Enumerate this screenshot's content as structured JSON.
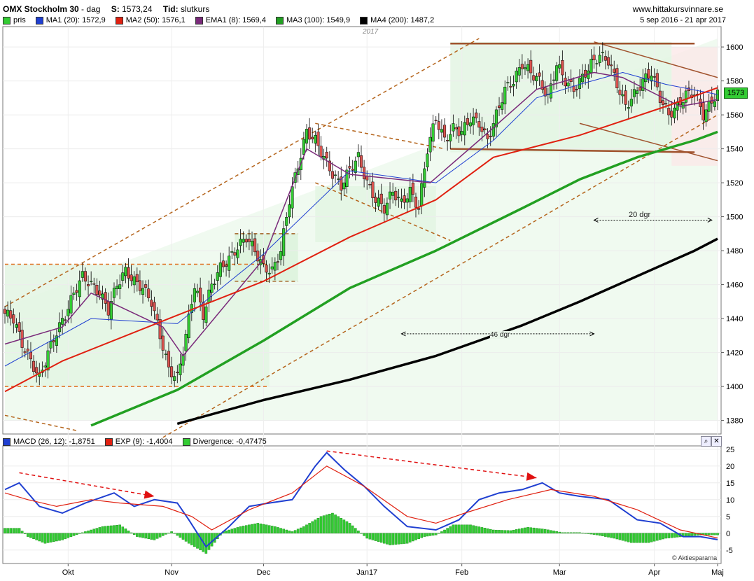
{
  "header": {
    "title": "OMX Stockholm 30",
    "period": "dag",
    "last_label": "S:",
    "last_value": "1573,24",
    "time_label": "Tid:",
    "time_value": "slutkurs",
    "site": "www.hittakursvinnare.se",
    "date_range": "5 sep 2016 - 21 apr 2017"
  },
  "legend_price": [
    {
      "label": "pris",
      "color": "#33cc33"
    },
    {
      "label": "MA1 (20): 1572,9",
      "color": "#1f3fd1"
    },
    {
      "label": "MA2 (50): 1576,1",
      "color": "#e02010"
    },
    {
      "label": "EMA1 (8): 1569,4",
      "color": "#7a2a7a"
    },
    {
      "label": "MA3 (100): 1549,9",
      "color": "#22a022"
    },
    {
      "label": "MA4 (200): 1487,2",
      "color": "#000000"
    }
  ],
  "legend_macd": [
    {
      "label": "MACD (26, 12): -1,8751",
      "color": "#1f3fd1"
    },
    {
      "label": "EXP (9): -1,4004",
      "color": "#e02010"
    },
    {
      "label": "Divergence: -0,47475",
      "color": "#33cc33"
    }
  ],
  "annotations": {
    "year_label": "2017",
    "dgr20": "20 dgr",
    "dgr46": "46 dgr",
    "watermark": "© Aktiespararna",
    "last_price_tag": "1573"
  },
  "chart_data": [
    {
      "type": "candlestick",
      "title": "OMX Stockholm 30",
      "x_labels": [
        "Okt",
        "Nov",
        "Dec",
        "Jan17",
        "Feb",
        "Mar",
        "Apr",
        "Maj"
      ],
      "y_ticks": [
        1380,
        1400,
        1420,
        1440,
        1460,
        1480,
        1500,
        1520,
        1540,
        1560,
        1580,
        1600
      ],
      "ylim": [
        1372,
        1612
      ],
      "close_anchors": [
        [
          0,
          1443
        ],
        [
          3,
          1440
        ],
        [
          6,
          1425
        ],
        [
          9,
          1415
        ],
        [
          12,
          1405
        ],
        [
          15,
          1420
        ],
        [
          18,
          1432
        ],
        [
          21,
          1442
        ],
        [
          24,
          1455
        ],
        [
          27,
          1465
        ],
        [
          30,
          1460
        ],
        [
          33,
          1455
        ],
        [
          36,
          1445
        ],
        [
          39,
          1460
        ],
        [
          42,
          1468
        ],
        [
          45,
          1462
        ],
        [
          48,
          1458
        ],
        [
          51,
          1450
        ],
        [
          54,
          1430
        ],
        [
          57,
          1410
        ],
        [
          60,
          1405
        ],
        [
          63,
          1430
        ],
        [
          66,
          1460
        ],
        [
          69,
          1442
        ],
        [
          72,
          1460
        ],
        [
          75,
          1470
        ],
        [
          78,
          1475
        ],
        [
          81,
          1482
        ],
        [
          84,
          1488
        ],
        [
          87,
          1480
        ],
        [
          90,
          1470
        ],
        [
          93,
          1468
        ],
        [
          96,
          1480
        ],
        [
          99,
          1510
        ],
        [
          102,
          1530
        ],
        [
          105,
          1550
        ],
        [
          108,
          1545
        ],
        [
          111,
          1535
        ],
        [
          114,
          1525
        ],
        [
          117,
          1518
        ],
        [
          120,
          1528
        ],
        [
          123,
          1535
        ],
        [
          126,
          1520
        ],
        [
          129,
          1510
        ],
        [
          132,
          1505
        ],
        [
          135,
          1515
        ],
        [
          138,
          1508
        ],
        [
          141,
          1515
        ],
        [
          144,
          1505
        ],
        [
          147,
          1540
        ],
        [
          150,
          1558
        ],
        [
          153,
          1545
        ],
        [
          156,
          1552
        ],
        [
          159,
          1550
        ],
        [
          162,
          1558
        ],
        [
          165,
          1555
        ],
        [
          168,
          1545
        ],
        [
          171,
          1560
        ],
        [
          174,
          1575
        ],
        [
          177,
          1580
        ],
        [
          180,
          1590
        ],
        [
          183,
          1585
        ],
        [
          186,
          1580
        ],
        [
          189,
          1570
        ],
        [
          192,
          1590
        ],
        [
          195,
          1580
        ],
        [
          198,
          1575
        ],
        [
          201,
          1582
        ],
        [
          204,
          1590
        ],
        [
          207,
          1595
        ],
        [
          210,
          1592
        ],
        [
          213,
          1578
        ],
        [
          216,
          1565
        ],
        [
          219,
          1572
        ],
        [
          222,
          1580
        ],
        [
          225,
          1585
        ],
        [
          228,
          1570
        ],
        [
          231,
          1560
        ],
        [
          234,
          1565
        ],
        [
          237,
          1572
        ],
        [
          240,
          1573
        ],
        [
          243,
          1560
        ],
        [
          246,
          1568
        ],
        [
          248,
          1573
        ]
      ],
      "series": [
        {
          "name": "MA1 (20)",
          "points": [
            [
              0,
              1412
            ],
            [
              30,
              1440
            ],
            [
              60,
              1437
            ],
            [
              90,
              1478
            ],
            [
              120,
              1527
            ],
            [
              150,
              1520
            ],
            [
              170,
              1545
            ],
            [
              185,
              1570
            ],
            [
              200,
              1578
            ],
            [
              215,
              1585
            ],
            [
              230,
              1578
            ],
            [
              248,
              1572
            ]
          ]
        },
        {
          "name": "EMA1 (8)",
          "points": [
            [
              0,
              1425
            ],
            [
              20,
              1435
            ],
            [
              30,
              1455
            ],
            [
              55,
              1435
            ],
            [
              62,
              1418
            ],
            [
              90,
              1475
            ],
            [
              105,
              1540
            ],
            [
              120,
              1525
            ],
            [
              148,
              1520
            ],
            [
              165,
              1545
            ],
            [
              185,
              1575
            ],
            [
              205,
              1585
            ],
            [
              215,
              1582
            ],
            [
              235,
              1565
            ],
            [
              248,
              1569
            ]
          ]
        },
        {
          "name": "MA2 (50)",
          "points": [
            [
              0,
              1397
            ],
            [
              20,
              1415
            ],
            [
              60,
              1442
            ],
            [
              90,
              1462
            ],
            [
              120,
              1488
            ],
            [
              150,
              1510
            ],
            [
              170,
              1535
            ],
            [
              200,
              1548
            ],
            [
              230,
              1565
            ],
            [
              248,
              1576
            ]
          ]
        },
        {
          "name": "MA3 (100)",
          "points": [
            [
              30,
              1377
            ],
            [
              60,
              1398
            ],
            [
              90,
              1427
            ],
            [
              120,
              1458
            ],
            [
              150,
              1480
            ],
            [
              180,
              1505
            ],
            [
              200,
              1522
            ],
            [
              220,
              1535
            ],
            [
              240,
              1545
            ],
            [
              248,
              1550
            ]
          ]
        },
        {
          "name": "MA4 (200)",
          "points": [
            [
              60,
              1378
            ],
            [
              90,
              1392
            ],
            [
              120,
              1404
            ],
            [
              150,
              1418
            ],
            [
              180,
              1436
            ],
            [
              200,
              1450
            ],
            [
              220,
              1465
            ],
            [
              240,
              1480
            ],
            [
              248,
              1487
            ]
          ]
        }
      ]
    },
    {
      "type": "line",
      "title": "MACD (26, 12)",
      "ylim": [
        -9,
        26
      ],
      "y_ticks": [
        -5,
        0,
        5,
        10,
        15,
        20,
        25
      ],
      "series": [
        {
          "name": "MACD (26, 12)",
          "points": [
            [
              0,
              13
            ],
            [
              5,
              15
            ],
            [
              12,
              8
            ],
            [
              20,
              6
            ],
            [
              28,
              9
            ],
            [
              38,
              12
            ],
            [
              45,
              8
            ],
            [
              52,
              10
            ],
            [
              60,
              9
            ],
            [
              64,
              4
            ],
            [
              70,
              -4
            ],
            [
              78,
              2
            ],
            [
              85,
              8
            ],
            [
              92,
              9
            ],
            [
              100,
              10
            ],
            [
              108,
              20
            ],
            [
              112,
              24
            ],
            [
              118,
              19
            ],
            [
              125,
              14
            ],
            [
              132,
              8
            ],
            [
              140,
              2
            ],
            [
              150,
              1
            ],
            [
              158,
              4
            ],
            [
              165,
              10
            ],
            [
              172,
              12
            ],
            [
              180,
              13
            ],
            [
              187,
              15
            ],
            [
              193,
              12
            ],
            [
              200,
              11
            ],
            [
              210,
              10
            ],
            [
              220,
              4
            ],
            [
              228,
              3
            ],
            [
              236,
              -1
            ],
            [
              242,
              -1
            ],
            [
              248,
              -1.9
            ]
          ]
        },
        {
          "name": "EXP (9)",
          "points": [
            [
              0,
              12
            ],
            [
              8,
              10
            ],
            [
              18,
              8
            ],
            [
              30,
              10
            ],
            [
              40,
              9
            ],
            [
              55,
              8
            ],
            [
              65,
              5
            ],
            [
              72,
              1
            ],
            [
              85,
              7
            ],
            [
              100,
              12
            ],
            [
              112,
              20
            ],
            [
              125,
              14
            ],
            [
              140,
              5
            ],
            [
              150,
              3
            ],
            [
              160,
              6
            ],
            [
              175,
              10
            ],
            [
              190,
              13
            ],
            [
              205,
              11
            ],
            [
              220,
              7
            ],
            [
              235,
              1
            ],
            [
              248,
              -1.4
            ]
          ]
        }
      ],
      "divergence": [
        [
          0,
          1.5
        ],
        [
          5,
          1.5
        ],
        [
          8,
          -1
        ],
        [
          14,
          -3
        ],
        [
          20,
          -2
        ],
        [
          28,
          0.5
        ],
        [
          34,
          2
        ],
        [
          40,
          2.5
        ],
        [
          46,
          -1
        ],
        [
          52,
          -2
        ],
        [
          58,
          0.5
        ],
        [
          64,
          -3
        ],
        [
          70,
          -6
        ],
        [
          76,
          0.5
        ],
        [
          82,
          2
        ],
        [
          88,
          3
        ],
        [
          94,
          2
        ],
        [
          100,
          0.5
        ],
        [
          104,
          2
        ],
        [
          110,
          5
        ],
        [
          114,
          6
        ],
        [
          120,
          3
        ],
        [
          126,
          -1.5
        ],
        [
          134,
          -3.5
        ],
        [
          140,
          -3
        ],
        [
          146,
          -1
        ],
        [
          150,
          -0.5
        ],
        [
          156,
          2.5
        ],
        [
          162,
          2.5
        ],
        [
          170,
          1
        ],
        [
          176,
          0.8
        ],
        [
          182,
          1.8
        ],
        [
          188,
          1.2
        ],
        [
          194,
          0.2
        ],
        [
          200,
          0.2
        ],
        [
          206,
          -0.5
        ],
        [
          212,
          -1.5
        ],
        [
          218,
          -2.8
        ],
        [
          224,
          -2.8
        ],
        [
          230,
          -1.5
        ],
        [
          236,
          -1
        ],
        [
          242,
          -0.5
        ],
        [
          248,
          -0.5
        ]
      ]
    }
  ]
}
